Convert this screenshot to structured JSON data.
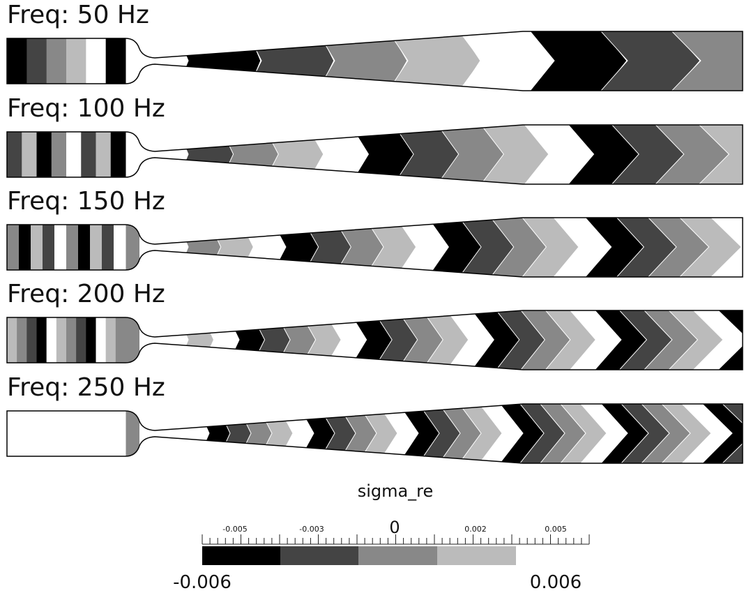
{
  "panels": [
    {
      "title": "Freq: 50 Hz"
    },
    {
      "title": "Freq: 100 Hz"
    },
    {
      "title": "Freq: 150 Hz"
    },
    {
      "title": "Freq: 200 Hz"
    },
    {
      "title": "Freq: 250 Hz"
    }
  ],
  "colorbar": {
    "title": "sigma_re",
    "ticks": [
      "-0.005",
      "-0.003",
      "0",
      "0.002",
      "0.005"
    ],
    "min_label": "-0.006",
    "max_label": "0.006"
  }
}
